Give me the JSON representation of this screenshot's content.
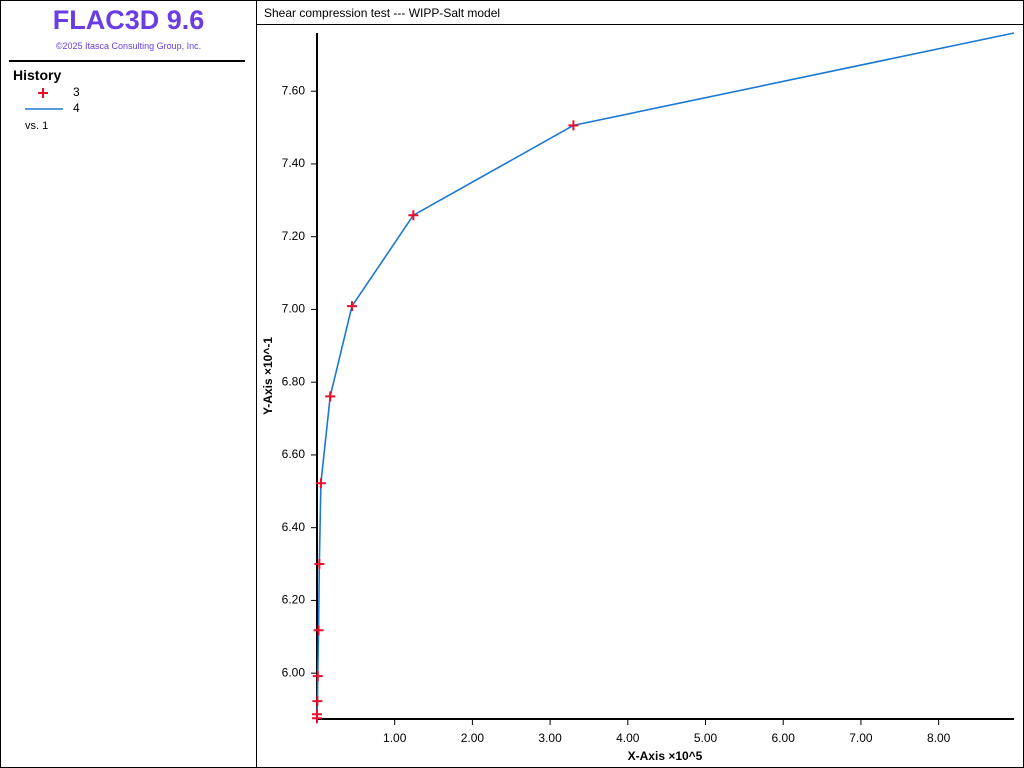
{
  "header": {
    "title": "FLAC3D 9.6",
    "copyright": "©2025 Itasca Consulting Group, Inc."
  },
  "legend": {
    "title": "History",
    "note": "vs. 1"
  },
  "chart_data": {
    "type": "line",
    "title": "Shear compression test --- WIPP-Salt model",
    "xlabel": "X-Axis ×10^5",
    "ylabel": "Y-Axis ×10^-1",
    "x": [
      0,
      0,
      0.005,
      0.01,
      0.02,
      0.03,
      0.05,
      0.17,
      0.45,
      1.24,
      3.3,
      8.97
    ],
    "series": [
      {
        "name": "3",
        "color": "#e8102a",
        "style": "marker",
        "values": [
          5.876,
          5.887,
          5.923,
          5.992,
          6.118,
          6.3,
          6.522,
          6.761,
          7.009,
          7.259,
          7.506,
          null
        ]
      },
      {
        "name": "4",
        "color": "#1a78d4",
        "style": "line",
        "values": [
          5.876,
          5.887,
          5.923,
          5.992,
          6.118,
          6.3,
          6.522,
          6.761,
          7.009,
          7.259,
          7.506,
          7.76
        ]
      }
    ],
    "xlim": [
      0,
      8.97
    ],
    "ylim": [
      5.874,
      7.76
    ],
    "xticks": [
      {
        "value": 1,
        "label": "1.00"
      },
      {
        "value": 2,
        "label": "2.00"
      },
      {
        "value": 3,
        "label": "3.00"
      },
      {
        "value": 4,
        "label": "4.00"
      },
      {
        "value": 5,
        "label": "5.00"
      },
      {
        "value": 6,
        "label": "6.00"
      },
      {
        "value": 7,
        "label": "7.00"
      },
      {
        "value": 8,
        "label": "8.00"
      }
    ],
    "yticks": [
      {
        "value": 6.0,
        "label": "6.00"
      },
      {
        "value": 6.2,
        "label": "6.20"
      },
      {
        "value": 6.4,
        "label": "6.40"
      },
      {
        "value": 6.6,
        "label": "6.60"
      },
      {
        "value": 6.8,
        "label": "6.80"
      },
      {
        "value": 7.0,
        "label": "7.00"
      },
      {
        "value": 7.2,
        "label": "7.20"
      },
      {
        "value": 7.4,
        "label": "7.40"
      },
      {
        "value": 7.6,
        "label": "7.60"
      }
    ]
  }
}
